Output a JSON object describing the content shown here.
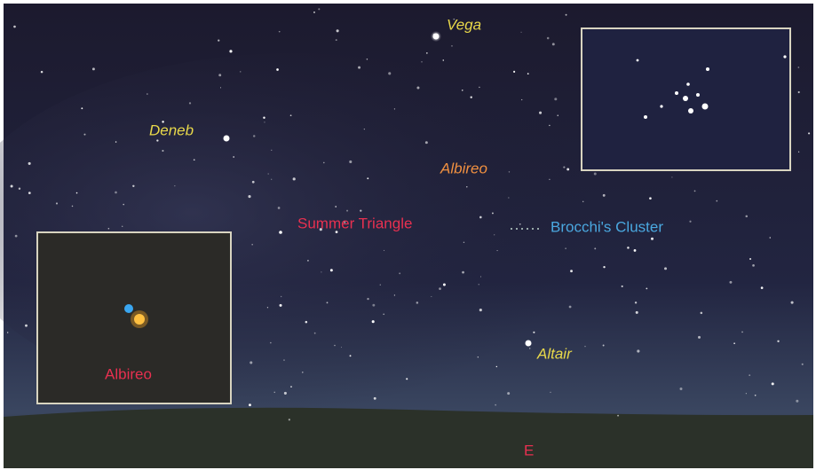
{
  "labels": {
    "vega": "Vega",
    "deneb": "Deneb",
    "albireo": "Albireo",
    "summer_triangle": "Summer Triangle",
    "brocchi": "Brocchi's Cluster",
    "altair": "Altair",
    "albireo_inset": "Albireo",
    "east": "E"
  }
}
